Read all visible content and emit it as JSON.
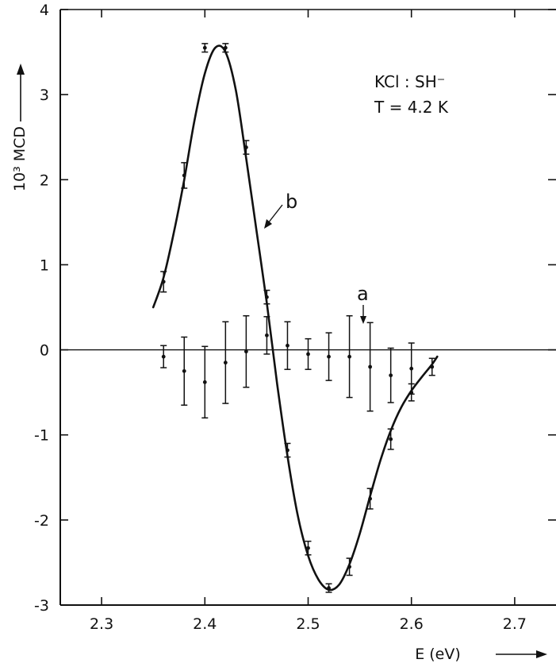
{
  "chart_data": {
    "type": "scatter",
    "title": "",
    "xlabel": "E (eV)",
    "ylabel": "10³ MCD",
    "xlim": [
      2.26,
      2.74
    ],
    "ylim": [
      -3,
      4
    ],
    "x_ticks": [
      "2.3",
      "2.4",
      "2.5",
      "2.6",
      "2.7"
    ],
    "y_ticks": [
      "-3",
      "-2",
      "-1",
      "0",
      "1",
      "2",
      "3",
      "4"
    ],
    "grid": false,
    "annotations": {
      "sample": "KCl : SH⁻",
      "temperature": "T = 4.2 K"
    },
    "series": [
      {
        "name": "b",
        "points": [
          {
            "x": 2.36,
            "y": 0.8,
            "err": 0.12
          },
          {
            "x": 2.38,
            "y": 2.05,
            "err": 0.15
          },
          {
            "x": 2.4,
            "y": 3.55,
            "err": 0.05
          },
          {
            "x": 2.42,
            "y": 3.55,
            "err": 0.05
          },
          {
            "x": 2.44,
            "y": 2.38,
            "err": 0.08
          },
          {
            "x": 2.46,
            "y": 0.62,
            "err": 0.08
          },
          {
            "x": 2.48,
            "y": -1.18,
            "err": 0.08
          },
          {
            "x": 2.5,
            "y": -2.33,
            "err": 0.08
          },
          {
            "x": 2.52,
            "y": -2.8,
            "err": 0.05
          },
          {
            "x": 2.54,
            "y": -2.55,
            "err": 0.1
          },
          {
            "x": 2.56,
            "y": -1.75,
            "err": 0.12
          },
          {
            "x": 2.58,
            "y": -1.05,
            "err": 0.12
          },
          {
            "x": 2.6,
            "y": -0.5,
            "err": 0.1
          },
          {
            "x": 2.62,
            "y": -0.2,
            "err": 0.1
          }
        ],
        "curve": [
          [
            2.35,
            0.5
          ],
          [
            2.36,
            0.85
          ],
          [
            2.37,
            1.38
          ],
          [
            2.38,
            2.0
          ],
          [
            2.39,
            2.7
          ],
          [
            2.4,
            3.25
          ],
          [
            2.41,
            3.55
          ],
          [
            2.42,
            3.5
          ],
          [
            2.43,
            3.05
          ],
          [
            2.44,
            2.25
          ],
          [
            2.45,
            1.4
          ],
          [
            2.46,
            0.55
          ],
          [
            2.47,
            -0.4
          ],
          [
            2.48,
            -1.25
          ],
          [
            2.49,
            -1.95
          ],
          [
            2.5,
            -2.42
          ],
          [
            2.51,
            -2.7
          ],
          [
            2.52,
            -2.82
          ],
          [
            2.53,
            -2.76
          ],
          [
            2.54,
            -2.52
          ],
          [
            2.55,
            -2.16
          ],
          [
            2.56,
            -1.72
          ],
          [
            2.57,
            -1.3
          ],
          [
            2.58,
            -0.95
          ],
          [
            2.59,
            -0.68
          ],
          [
            2.6,
            -0.48
          ],
          [
            2.61,
            -0.32
          ],
          [
            2.62,
            -0.17
          ],
          [
            2.625,
            -0.08
          ]
        ]
      },
      {
        "name": "a",
        "points": [
          {
            "x": 2.36,
            "y": -0.08,
            "err": 0.13
          },
          {
            "x": 2.38,
            "y": -0.25,
            "err": 0.4
          },
          {
            "x": 2.4,
            "y": -0.38,
            "err": 0.42
          },
          {
            "x": 2.42,
            "y": -0.15,
            "err": 0.48
          },
          {
            "x": 2.44,
            "y": -0.02,
            "err": 0.42
          },
          {
            "x": 2.46,
            "y": 0.17,
            "err": 0.22
          },
          {
            "x": 2.48,
            "y": 0.05,
            "err": 0.28
          },
          {
            "x": 2.5,
            "y": -0.05,
            "err": 0.18
          },
          {
            "x": 2.52,
            "y": -0.08,
            "err": 0.28
          },
          {
            "x": 2.54,
            "y": -0.08,
            "err": 0.48
          },
          {
            "x": 2.56,
            "y": -0.2,
            "err": 0.52
          },
          {
            "x": 2.58,
            "y": -0.3,
            "err": 0.32
          },
          {
            "x": 2.6,
            "y": -0.22,
            "err": 0.3
          }
        ]
      }
    ]
  }
}
